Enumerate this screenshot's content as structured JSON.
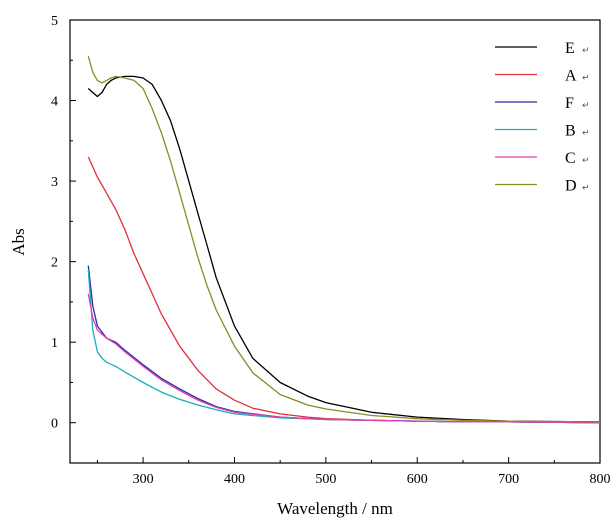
{
  "chart_data": {
    "type": "line",
    "xlabel": "Wavelength / nm",
    "ylabel": "Abs",
    "xlim": [
      220,
      800
    ],
    "ylim": [
      -0.5,
      5
    ],
    "xticks": [
      300,
      400,
      500,
      600,
      700,
      800
    ],
    "yticks": [
      0,
      1,
      2,
      3,
      4,
      5
    ],
    "grid": false,
    "legend_position": "top-right",
    "legend_mark": "↵",
    "series": [
      {
        "name": "E",
        "color": "#000000",
        "x": [
          240,
          245,
          250,
          255,
          260,
          265,
          270,
          280,
          290,
          300,
          310,
          320,
          330,
          340,
          350,
          360,
          370,
          380,
          400,
          420,
          450,
          480,
          500,
          550,
          600,
          650,
          700,
          800
        ],
        "y": [
          4.15,
          4.1,
          4.05,
          4.1,
          4.2,
          4.25,
          4.28,
          4.3,
          4.3,
          4.28,
          4.2,
          4.0,
          3.75,
          3.4,
          3.0,
          2.6,
          2.2,
          1.8,
          1.2,
          0.8,
          0.5,
          0.33,
          0.25,
          0.13,
          0.07,
          0.04,
          0.02,
          0.01
        ]
      },
      {
        "name": "A",
        "color": "#e0303a",
        "x": [
          240,
          250,
          260,
          270,
          280,
          290,
          300,
          320,
          340,
          360,
          380,
          400,
          420,
          450,
          480,
          500,
          550,
          600,
          650,
          700,
          800
        ],
        "y": [
          3.3,
          3.05,
          2.85,
          2.65,
          2.4,
          2.1,
          1.85,
          1.35,
          0.95,
          0.65,
          0.42,
          0.28,
          0.18,
          0.11,
          0.07,
          0.05,
          0.03,
          0.02,
          0.01,
          0.01,
          0.0
        ]
      },
      {
        "name": "F",
        "color": "#2a2aa8",
        "x": [
          240,
          245,
          250,
          260,
          270,
          280,
          300,
          320,
          340,
          360,
          380,
          400,
          450,
          500,
          550,
          600,
          650,
          700,
          800
        ],
        "y": [
          1.95,
          1.45,
          1.2,
          1.05,
          1.0,
          0.9,
          0.72,
          0.55,
          0.42,
          0.3,
          0.2,
          0.14,
          0.07,
          0.04,
          0.03,
          0.02,
          0.01,
          0.01,
          0.0
        ]
      },
      {
        "name": "B",
        "color": "#1aaeb4",
        "x": [
          240,
          245,
          250,
          255,
          260,
          270,
          280,
          300,
          320,
          340,
          360,
          380,
          400,
          450,
          500,
          550,
          600,
          650,
          700,
          800
        ],
        "y": [
          1.9,
          1.15,
          0.88,
          0.8,
          0.75,
          0.7,
          0.63,
          0.5,
          0.38,
          0.29,
          0.22,
          0.16,
          0.11,
          0.06,
          0.04,
          0.03,
          0.02,
          0.01,
          0.01,
          0.0
        ]
      },
      {
        "name": "C",
        "color": "#e040b0",
        "x": [
          240,
          245,
          250,
          260,
          270,
          280,
          300,
          320,
          340,
          360,
          380,
          400,
          450,
          500,
          550,
          600,
          650,
          700,
          800
        ],
        "y": [
          1.6,
          1.3,
          1.15,
          1.05,
          0.98,
          0.88,
          0.7,
          0.53,
          0.4,
          0.28,
          0.19,
          0.13,
          0.07,
          0.04,
          0.03,
          0.02,
          0.01,
          0.01,
          0.0
        ]
      },
      {
        "name": "D",
        "color": "#8a8a26",
        "x": [
          240,
          245,
          250,
          255,
          260,
          265,
          270,
          280,
          290,
          300,
          310,
          320,
          330,
          340,
          350,
          360,
          370,
          380,
          400,
          420,
          450,
          480,
          500,
          550,
          600,
          650,
          700,
          800
        ],
        "y": [
          4.55,
          4.35,
          4.25,
          4.22,
          4.25,
          4.28,
          4.3,
          4.28,
          4.25,
          4.15,
          3.9,
          3.6,
          3.25,
          2.85,
          2.45,
          2.05,
          1.7,
          1.4,
          0.95,
          0.62,
          0.35,
          0.22,
          0.17,
          0.09,
          0.05,
          0.03,
          0.02,
          0.01
        ]
      }
    ]
  }
}
